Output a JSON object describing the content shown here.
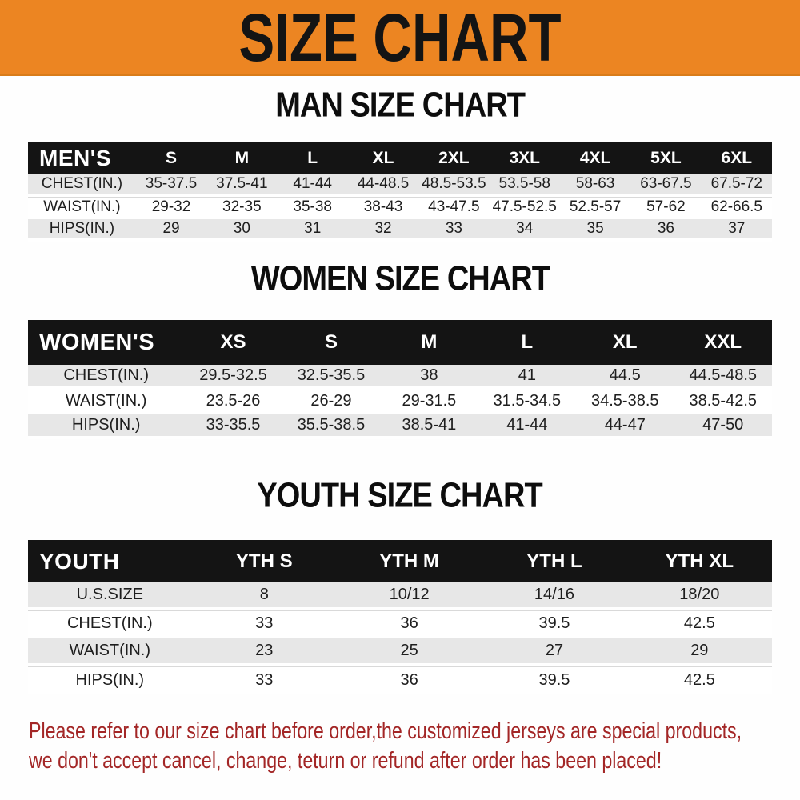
{
  "banner": {
    "title": "SIZE CHART"
  },
  "colors": {
    "banner_orange": "#ec8522",
    "table_header_black": "#141414",
    "row_gray": "#e7e7e7",
    "row_white": "#ffffff",
    "footnote_red": "#a32626",
    "heading_black": "#0d0d0d"
  },
  "sections": [
    {
      "id": "men",
      "heading": "MAN SIZE CHART",
      "table": {
        "header_label": "MEN'S",
        "columns": [
          "S",
          "M",
          "L",
          "XL",
          "2XL",
          "3XL",
          "4XL",
          "5XL",
          "6XL"
        ],
        "rows": [
          {
            "label": "CHEST(IN.)",
            "values": [
              "35-37.5",
              "37.5-41",
              "41-44",
              "44-48.5",
              "48.5-53.5",
              "53.5-58",
              "58-63",
              "63-67.5",
              "67.5-72"
            ]
          },
          {
            "label": "WAIST(IN.)",
            "values": [
              "29-32",
              "32-35",
              "35-38",
              "38-43",
              "43-47.5",
              "47.5-52.5",
              "52.5-57",
              "57-62",
              "62-66.5"
            ]
          },
          {
            "label": "HIPS(IN.)",
            "values": [
              "29",
              "30",
              "31",
              "32",
              "33",
              "34",
              "35",
              "36",
              "37"
            ]
          }
        ]
      }
    },
    {
      "id": "women",
      "heading": "WOMEN SIZE CHART",
      "table": {
        "header_label": "WOMEN'S",
        "columns": [
          "XS",
          "S",
          "M",
          "L",
          "XL",
          "XXL"
        ],
        "rows": [
          {
            "label": "CHEST(IN.)",
            "values": [
              "29.5-32.5",
              "32.5-35.5",
              "38",
              "41",
              "44.5",
              "44.5-48.5"
            ]
          },
          {
            "label": "WAIST(IN.)",
            "values": [
              "23.5-26",
              "26-29",
              "29-31.5",
              "31.5-34.5",
              "34.5-38.5",
              "38.5-42.5"
            ]
          },
          {
            "label": "HIPS(IN.)",
            "values": [
              "33-35.5",
              "35.5-38.5",
              "38.5-41",
              "41-44",
              "44-47",
              "47-50"
            ]
          }
        ]
      }
    },
    {
      "id": "youth",
      "heading": "YOUTH SIZE CHART",
      "table": {
        "header_label": "YOUTH",
        "columns": [
          "YTH S",
          "YTH M",
          "YTH L",
          "YTH XL"
        ],
        "rows": [
          {
            "label": "U.S.SIZE",
            "values": [
              "8",
              "10/12",
              "14/16",
              "18/20"
            ]
          },
          {
            "label": "CHEST(IN.)",
            "values": [
              "33",
              "36",
              "39.5",
              "42.5"
            ]
          },
          {
            "label": "WAIST(IN.)",
            "values": [
              "23",
              "25",
              "27",
              "29"
            ]
          },
          {
            "label": "HIPS(IN.)",
            "values": [
              "33",
              "36",
              "39.5",
              "42.5"
            ]
          }
        ]
      }
    }
  ],
  "footnote": {
    "line1": "Please refer to our size chart before order,the customized jerseys are special products,",
    "line2": "we don't accept cancel, change, teturn or refund after order has been placed!"
  }
}
